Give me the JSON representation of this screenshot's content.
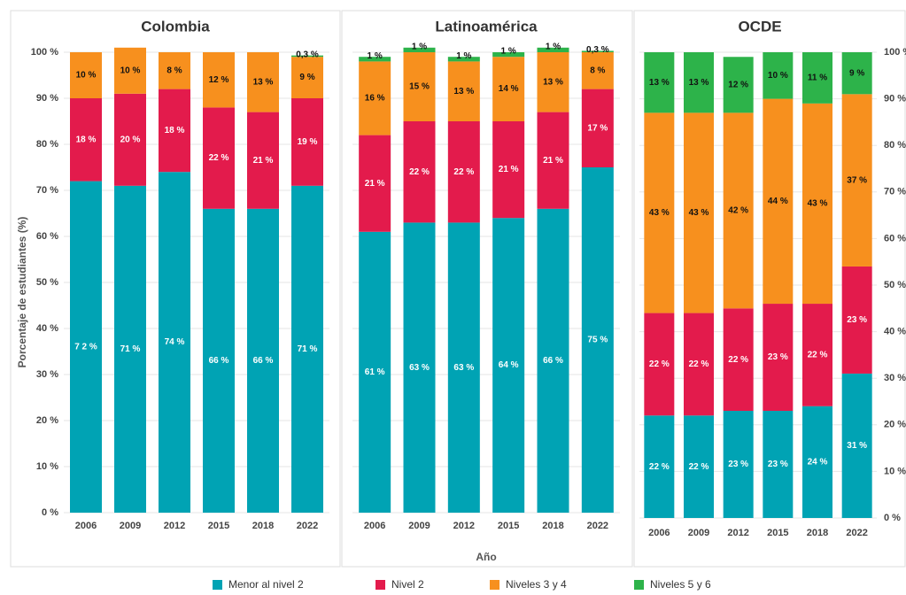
{
  "ylabel": "Porcentaje de estudiantes (%)",
  "xlabel": "Año",
  "legend": [
    {
      "name": "Menor al nivel 2",
      "color": "#00a3b4"
    },
    {
      "name": "Nivel 2",
      "color": "#e31b4c"
    },
    {
      "name": "Niveles 3 y 4",
      "color": "#f7901e"
    },
    {
      "name": "Niveles 5 y 6",
      "color": "#2db34a"
    }
  ],
  "chart_data": [
    {
      "type": "stacked_bar",
      "title": "Colombia",
      "categories": [
        "2006",
        "2009",
        "2012",
        "2015",
        "2018",
        "2022"
      ],
      "series": [
        {
          "values": [
            72,
            71,
            74,
            66,
            66,
            71
          ],
          "value_labels": [
            "7 2 %",
            "71 %",
            "74 %",
            "66 %",
            "66 %",
            "71 %"
          ]
        },
        {
          "values": [
            18,
            20,
            18,
            22,
            21,
            19
          ],
          "value_labels": [
            "18 %",
            "20 %",
            "18 %",
            "22 %",
            "21 %",
            "19 %"
          ]
        },
        {
          "values": [
            10,
            10,
            8,
            12,
            13,
            9
          ],
          "value_labels": [
            "10 %",
            "10 %",
            "8 %",
            "12 %",
            "13 %",
            "9 %"
          ]
        },
        {
          "values": [
            0,
            0,
            0,
            0,
            0,
            0.3
          ],
          "value_labels": [
            null,
            null,
            null,
            null,
            null,
            "0,3 %"
          ]
        }
      ],
      "ylim": [
        0,
        100
      ],
      "ytick_side": "left",
      "grid": true,
      "yticks": [
        {
          "value": 0,
          "label": "0 %"
        },
        {
          "value": 10,
          "label": "10 %"
        },
        {
          "value": 20,
          "label": "20 %"
        },
        {
          "value": 30,
          "label": "30 %"
        },
        {
          "value": 40,
          "label": "40 %"
        },
        {
          "value": 50,
          "label": "50 %"
        },
        {
          "value": 60,
          "label": "60 %"
        },
        {
          "value": 70,
          "label": "70 %"
        },
        {
          "value": 80,
          "label": "80 %"
        },
        {
          "value": 90,
          "label": "90 %"
        },
        {
          "value": 100,
          "label": "100 %"
        }
      ]
    },
    {
      "type": "stacked_bar",
      "title": "Latinoamérica",
      "categories": [
        "2006",
        "2009",
        "2012",
        "2015",
        "2018",
        "2022"
      ],
      "series": [
        {
          "values": [
            61,
            63,
            63,
            64,
            66,
            75
          ],
          "value_labels": [
            "61 %",
            "63 %",
            "63 %",
            "64 %",
            "66 %",
            "75 %"
          ]
        },
        {
          "values": [
            21,
            22,
            22,
            21,
            21,
            17
          ],
          "value_labels": [
            "21 %",
            "22 %",
            "22 %",
            "21 %",
            "21 %",
            "17 %"
          ]
        },
        {
          "values": [
            16,
            15,
            13,
            14,
            13,
            8
          ],
          "value_labels": [
            "16 %",
            "15 %",
            "13 %",
            "14 %",
            "13 %",
            "8 %"
          ]
        },
        {
          "values": [
            1,
            1,
            1,
            1,
            1,
            0.3
          ],
          "value_labels": [
            "1 %",
            "1 %",
            "1 %",
            "1 %",
            "1 %",
            "0,3 %"
          ]
        }
      ],
      "ylim": [
        0,
        100
      ],
      "grid": true,
      "yticks": [
        0,
        10,
        20,
        30,
        40,
        50,
        60,
        70,
        80,
        90,
        100
      ]
    },
    {
      "type": "stacked_bar",
      "title": "OCDE",
      "categories": [
        "2006",
        "2009",
        "2012",
        "2015",
        "2018",
        "2022"
      ],
      "series": [
        {
          "values": [
            22,
            22,
            23,
            23,
            24,
            31
          ],
          "value_labels": [
            "22 %",
            "22 %",
            "23 %",
            "23 %",
            "24 %",
            "31 %"
          ]
        },
        {
          "values": [
            22,
            22,
            22,
            23,
            22,
            23
          ],
          "value_labels": [
            "22 %",
            "22 %",
            "22 %",
            "23 %",
            "22 %",
            "23 %"
          ]
        },
        {
          "values": [
            43,
            43,
            42,
            44,
            43,
            37
          ],
          "value_labels": [
            "43 %",
            "43 %",
            "42 %",
            "44 %",
            "43 %",
            "37 %"
          ]
        },
        {
          "values": [
            13,
            13,
            12,
            10,
            11,
            9
          ],
          "value_labels": [
            "13 %",
            "13 %",
            "12 %",
            "10 %",
            "11 %",
            "9 %"
          ]
        }
      ],
      "ylim": [
        0,
        100
      ],
      "ytick_side": "right",
      "grid": true,
      "yticks": [
        {
          "value": 0,
          "label": "0 %"
        },
        {
          "value": 10,
          "label": "10 %"
        },
        {
          "value": 20,
          "label": "20 %"
        },
        {
          "value": 30,
          "label": "30 %"
        },
        {
          "value": 40,
          "label": "40 %"
        },
        {
          "value": 50,
          "label": "50 %"
        },
        {
          "value": 60,
          "label": "60 %"
        },
        {
          "value": 70,
          "label": "70 %"
        },
        {
          "value": 80,
          "label": "80 %"
        },
        {
          "value": 90,
          "label": "90 %"
        },
        {
          "value": 100,
          "label": "100 %"
        }
      ]
    }
  ]
}
